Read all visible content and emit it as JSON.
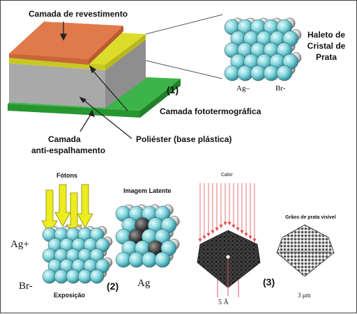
{
  "top": {
    "coating_layer": "Camada de revestimento",
    "crystal_title_1": "Haleto de",
    "crystal_title_2": "Cristal de",
    "crystal_title_3": "Prata",
    "marker_1": "(1)",
    "ag_minus": "Ag–",
    "br_minus": "Br-",
    "photothermo_layer": "Camada fototermográfica",
    "antihalation_1": "Camada",
    "antihalation_2": "anti-espalhamento",
    "polyester": "Poliéster (base plástica)"
  },
  "bottom": {
    "photons": "Fótons",
    "latent_image": "Imagem Latente",
    "heat": "Calor",
    "visible_grains": "Grãos de prata visível",
    "ag_plus": "Ag+",
    "br_minus": "Br-",
    "marker_2": "(2)",
    "ag": "Ag",
    "marker_3": "(3)",
    "exposure": "Exposição",
    "size_small": "5 Å",
    "size_large": "3 μm"
  },
  "colors": {
    "coating": "#e07a4a",
    "photothermo": "#dcdc2a",
    "polyester": "#a8a8a8",
    "antihalation": "#3cb44a",
    "silver_halide": "#7fd4dc",
    "bromide": "#d8d8d8",
    "photon_arrow": "#ecec1e",
    "heat_line": "#e05050",
    "grain": "#333333"
  }
}
